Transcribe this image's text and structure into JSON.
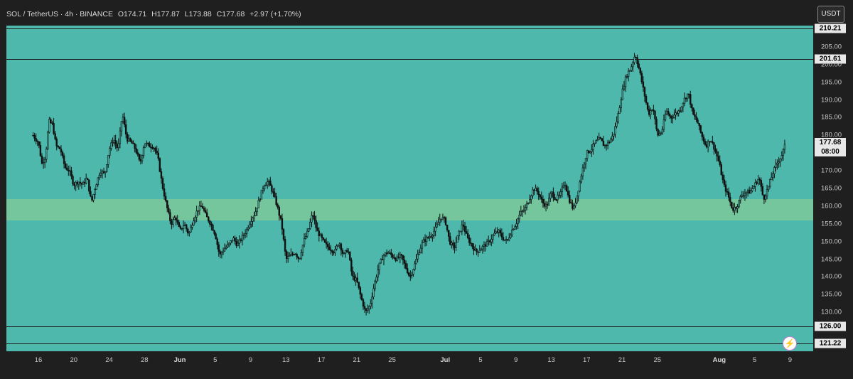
{
  "header": {
    "symbol": "SOL / TetherUS · 4h · BINANCE",
    "open": "O174.71",
    "high": "H177.87",
    "low": "L173.88",
    "close": "C177.68",
    "change": "+2.97 (+1.70%)"
  },
  "currency_button": "USDT",
  "price_label": {
    "price": "177.68",
    "countdown": "08:00"
  },
  "bolt_icon": "lightning-icon",
  "colors": {
    "background": "#1f1f1f",
    "plot": "#4db8ab",
    "zone": "#7cc79a",
    "candle": "#111111",
    "line": "#1b1b1b"
  },
  "chart_data": {
    "type": "candlestick",
    "title": "SOL / TetherUS · 4h · BINANCE",
    "xlabel": "",
    "ylabel": "",
    "ylim": [
      119,
      211
    ],
    "y_ticks": [
      "130.00",
      "135.00",
      "140.00",
      "145.00",
      "150.00",
      "155.00",
      "160.00",
      "165.00",
      "170.00",
      "175.00",
      "180.00",
      "185.00",
      "190.00",
      "195.00",
      "200.00",
      "205.00"
    ],
    "y_tick_values": [
      130,
      135,
      140,
      145,
      150,
      155,
      160,
      165,
      170,
      175,
      180,
      185,
      190,
      195,
      200,
      205
    ],
    "x_ticks": [
      {
        "label": "16",
        "day": 0
      },
      {
        "label": "20",
        "day": 4
      },
      {
        "label": "24",
        "day": 8
      },
      {
        "label": "28",
        "day": 12
      },
      {
        "label": "Jun",
        "day": 16,
        "major": true
      },
      {
        "label": "5",
        "day": 20
      },
      {
        "label": "9",
        "day": 24
      },
      {
        "label": "13",
        "day": 28
      },
      {
        "label": "17",
        "day": 32
      },
      {
        "label": "21",
        "day": 36
      },
      {
        "label": "25",
        "day": 40
      },
      {
        "label": "Jul",
        "day": 46,
        "major": true
      },
      {
        "label": "5",
        "day": 50
      },
      {
        "label": "9",
        "day": 54
      },
      {
        "label": "13",
        "day": 58
      },
      {
        "label": "17",
        "day": 62
      },
      {
        "label": "21",
        "day": 66
      },
      {
        "label": "25",
        "day": 70
      },
      {
        "label": "Aug",
        "day": 77,
        "major": true
      },
      {
        "label": "5",
        "day": 81
      },
      {
        "label": "9",
        "day": 85
      }
    ],
    "horizontal_lines": [
      {
        "label": "210.21",
        "value": 210.21
      },
      {
        "label": "201.61",
        "value": 201.61
      },
      {
        "label": "126.00",
        "value": 126.0
      },
      {
        "label": "121.22",
        "value": 121.22
      }
    ],
    "zone": {
      "from": 156,
      "to": 162
    },
    "anchors": [
      [
        -0.6,
        180
      ],
      [
        0,
        178
      ],
      [
        0.4,
        172
      ],
      [
        0.8,
        174
      ],
      [
        1.2,
        184
      ],
      [
        1.6,
        183
      ],
      [
        2.0,
        177
      ],
      [
        2.5,
        176
      ],
      [
        3.0,
        171
      ],
      [
        3.5,
        170
      ],
      [
        4.0,
        166
      ],
      [
        4.5,
        167
      ],
      [
        5.0,
        166
      ],
      [
        5.5,
        168
      ],
      [
        6.0,
        161
      ],
      [
        6.5,
        166
      ],
      [
        7.0,
        170
      ],
      [
        7.5,
        169
      ],
      [
        8.0,
        176
      ],
      [
        8.5,
        179
      ],
      [
        9.0,
        176
      ],
      [
        9.5,
        186
      ],
      [
        10.0,
        179
      ],
      [
        10.5,
        178
      ],
      [
        11.0,
        176
      ],
      [
        11.5,
        172
      ],
      [
        12.0,
        178
      ],
      [
        12.5,
        177
      ],
      [
        13.0,
        177
      ],
      [
        13.5,
        174
      ],
      [
        14.0,
        166
      ],
      [
        14.5,
        160
      ],
      [
        15.0,
        155
      ],
      [
        15.5,
        157
      ],
      [
        16.0,
        153
      ],
      [
        16.5,
        155
      ],
      [
        17.0,
        152
      ],
      [
        17.5,
        156
      ],
      [
        18.0,
        159
      ],
      [
        18.5,
        160
      ],
      [
        19.0,
        157
      ],
      [
        19.5,
        155
      ],
      [
        20.0,
        152
      ],
      [
        20.5,
        146
      ],
      [
        21.0,
        148
      ],
      [
        21.5,
        149
      ],
      [
        22.0,
        151
      ],
      [
        22.5,
        149
      ],
      [
        23.0,
        151
      ],
      [
        23.5,
        153
      ],
      [
        24.0,
        156
      ],
      [
        24.5,
        158
      ],
      [
        25.0,
        162
      ],
      [
        25.5,
        166
      ],
      [
        26.0,
        167
      ],
      [
        26.5,
        164
      ],
      [
        27.0,
        160
      ],
      [
        27.5,
        155
      ],
      [
        28.0,
        145
      ],
      [
        28.5,
        146
      ],
      [
        29.0,
        147
      ],
      [
        29.5,
        145
      ],
      [
        30.0,
        150
      ],
      [
        30.5,
        153
      ],
      [
        31.0,
        158
      ],
      [
        31.5,
        153
      ],
      [
        32.0,
        151
      ],
      [
        32.5,
        149
      ],
      [
        33.0,
        148
      ],
      [
        33.5,
        147
      ],
      [
        34.0,
        150
      ],
      [
        34.5,
        146
      ],
      [
        35.0,
        148
      ],
      [
        35.5,
        140
      ],
      [
        36.0,
        139
      ],
      [
        36.5,
        134
      ],
      [
        37.0,
        130
      ],
      [
        37.5,
        132
      ],
      [
        38.0,
        138
      ],
      [
        38.5,
        143
      ],
      [
        39.0,
        146
      ],
      [
        39.5,
        147
      ],
      [
        40.0,
        146
      ],
      [
        40.5,
        145
      ],
      [
        41.0,
        146
      ],
      [
        41.5,
        143
      ],
      [
        42.0,
        140
      ],
      [
        42.5,
        143
      ],
      [
        43.0,
        147
      ],
      [
        43.5,
        150
      ],
      [
        44.0,
        151
      ],
      [
        44.5,
        152
      ],
      [
        45.0,
        154
      ],
      [
        45.5,
        157
      ],
      [
        46.0,
        156
      ],
      [
        46.5,
        150
      ],
      [
        47.0,
        148
      ],
      [
        47.5,
        152
      ],
      [
        48.0,
        155
      ],
      [
        48.5,
        151
      ],
      [
        49.0,
        149
      ],
      [
        49.5,
        147
      ],
      [
        50.0,
        148
      ],
      [
        50.5,
        149
      ],
      [
        51.0,
        150
      ],
      [
        51.5,
        152
      ],
      [
        52.0,
        153
      ],
      [
        52.5,
        151
      ],
      [
        53.0,
        150
      ],
      [
        53.5,
        153
      ],
      [
        54.0,
        155
      ],
      [
        54.5,
        158
      ],
      [
        55.0,
        159
      ],
      [
        55.5,
        162
      ],
      [
        56.0,
        165
      ],
      [
        56.5,
        164
      ],
      [
        57.0,
        161
      ],
      [
        57.5,
        160
      ],
      [
        58.0,
        164
      ],
      [
        58.5,
        162
      ],
      [
        59.0,
        163
      ],
      [
        59.5,
        167
      ],
      [
        60.0,
        162
      ],
      [
        60.5,
        159
      ],
      [
        61.0,
        164
      ],
      [
        61.5,
        170
      ],
      [
        62.0,
        175
      ],
      [
        62.5,
        176
      ],
      [
        63.0,
        178
      ],
      [
        63.5,
        179
      ],
      [
        64.0,
        177
      ],
      [
        64.5,
        178
      ],
      [
        65.0,
        180
      ],
      [
        65.5,
        185
      ],
      [
        66.0,
        192
      ],
      [
        66.5,
        197
      ],
      [
        67.0,
        199
      ],
      [
        67.5,
        203
      ],
      [
        68.0,
        198
      ],
      [
        68.5,
        192
      ],
      [
        69.0,
        186
      ],
      [
        69.5,
        188
      ],
      [
        70.0,
        180
      ],
      [
        70.5,
        181
      ],
      [
        71.0,
        187
      ],
      [
        71.5,
        185
      ],
      [
        72.0,
        186
      ],
      [
        72.5,
        187
      ],
      [
        73.0,
        190
      ],
      [
        73.5,
        192
      ],
      [
        74.0,
        186
      ],
      [
        74.5,
        184
      ],
      [
        75.0,
        180
      ],
      [
        75.5,
        177
      ],
      [
        76.0,
        179
      ],
      [
        76.5,
        176
      ],
      [
        77.0,
        172
      ],
      [
        77.5,
        166
      ],
      [
        78.0,
        163
      ],
      [
        78.5,
        159
      ],
      [
        79.0,
        160
      ],
      [
        79.5,
        163
      ],
      [
        80.0,
        164
      ],
      [
        80.5,
        164
      ],
      [
        81.0,
        166
      ],
      [
        81.5,
        168
      ],
      [
        82.0,
        162
      ],
      [
        82.5,
        165
      ],
      [
        83.0,
        169
      ],
      [
        83.5,
        172
      ],
      [
        84.0,
        174
      ],
      [
        84.5,
        177.68
      ]
    ]
  }
}
